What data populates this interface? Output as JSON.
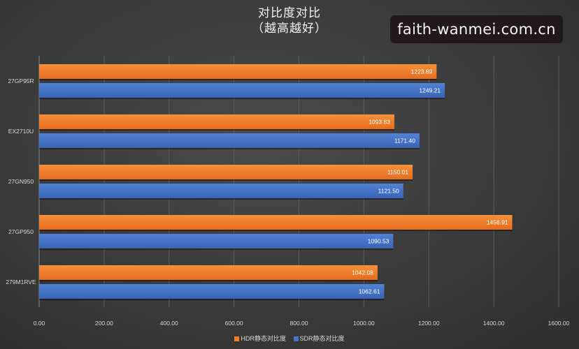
{
  "watermark": "faith-wanmei.com.cn",
  "chart_data": {
    "type": "bar",
    "orientation": "horizontal",
    "title": "对比度对比",
    "subtitle": "（越高越好）",
    "categories": [
      "27GP95R",
      "EX2710U",
      "27GN950",
      "27GP950",
      "279M1RVE"
    ],
    "series": [
      {
        "name": "HDR静态对比度",
        "color": "#f07d2a",
        "values": [
          1223.89,
          1093.83,
          1150.01,
          1456.91,
          1042.08
        ],
        "labels": [
          "1223.89",
          "1093.83",
          "1150.01",
          "1456.91",
          "1042.08"
        ]
      },
      {
        "name": "SDR静态对比度",
        "color": "#4472c4",
        "values": [
          1249.21,
          1171.4,
          1121.5,
          1090.53,
          1062.61
        ],
        "labels": [
          "1249.21",
          "1171.40",
          "1121.50",
          "1090.53",
          "1062.61"
        ]
      }
    ],
    "xlim": [
      0,
      1600
    ],
    "xticks": [
      "0.00",
      "200.00",
      "400.00",
      "600.00",
      "800.00",
      "1000.00",
      "1200.00",
      "1400.00",
      "1600.00"
    ],
    "grid": true,
    "legend_position": "bottom"
  }
}
